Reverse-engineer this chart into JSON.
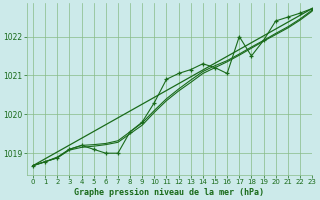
{
  "title": "Graphe pression niveau de la mer (hPa)",
  "bg_color": "#cceaea",
  "grid_color": "#88bb88",
  "line_color": "#1a6b1a",
  "marker_color": "#1a6b1a",
  "xlim": [
    -0.5,
    23
  ],
  "ylim": [
    1018.45,
    1022.85
  ],
  "yticks": [
    1019,
    1020,
    1021,
    1022
  ],
  "xticks": [
    0,
    1,
    2,
    3,
    4,
    5,
    6,
    7,
    8,
    9,
    10,
    11,
    12,
    13,
    14,
    15,
    16,
    17,
    18,
    19,
    20,
    21,
    22,
    23
  ],
  "trend_line": [
    [
      0,
      1018.68
    ],
    [
      23,
      1022.72
    ]
  ],
  "smooth_line1": [
    1018.68,
    1018.78,
    1018.88,
    1019.08,
    1019.15,
    1019.18,
    1019.22,
    1019.28,
    1019.5,
    1019.72,
    1020.05,
    1020.35,
    1020.6,
    1020.82,
    1021.05,
    1021.2,
    1021.35,
    1021.52,
    1021.7,
    1021.88,
    1022.05,
    1022.22,
    1022.42,
    1022.65
  ],
  "smooth_line2": [
    1018.68,
    1018.78,
    1018.9,
    1019.1,
    1019.2,
    1019.22,
    1019.25,
    1019.32,
    1019.55,
    1019.78,
    1020.1,
    1020.4,
    1020.65,
    1020.88,
    1021.1,
    1021.25,
    1021.38,
    1021.55,
    1021.73,
    1021.9,
    1022.08,
    1022.25,
    1022.45,
    1022.68
  ],
  "main_series": [
    1018.68,
    1018.78,
    1018.88,
    1019.1,
    1019.2,
    1019.1,
    1019.0,
    1019.0,
    1019.55,
    1019.8,
    1020.3,
    1020.9,
    1021.05,
    1021.15,
    1021.3,
    1021.2,
    1021.05,
    1022.0,
    1021.5,
    1021.9,
    1022.4,
    1022.5,
    1022.6,
    1022.72
  ]
}
